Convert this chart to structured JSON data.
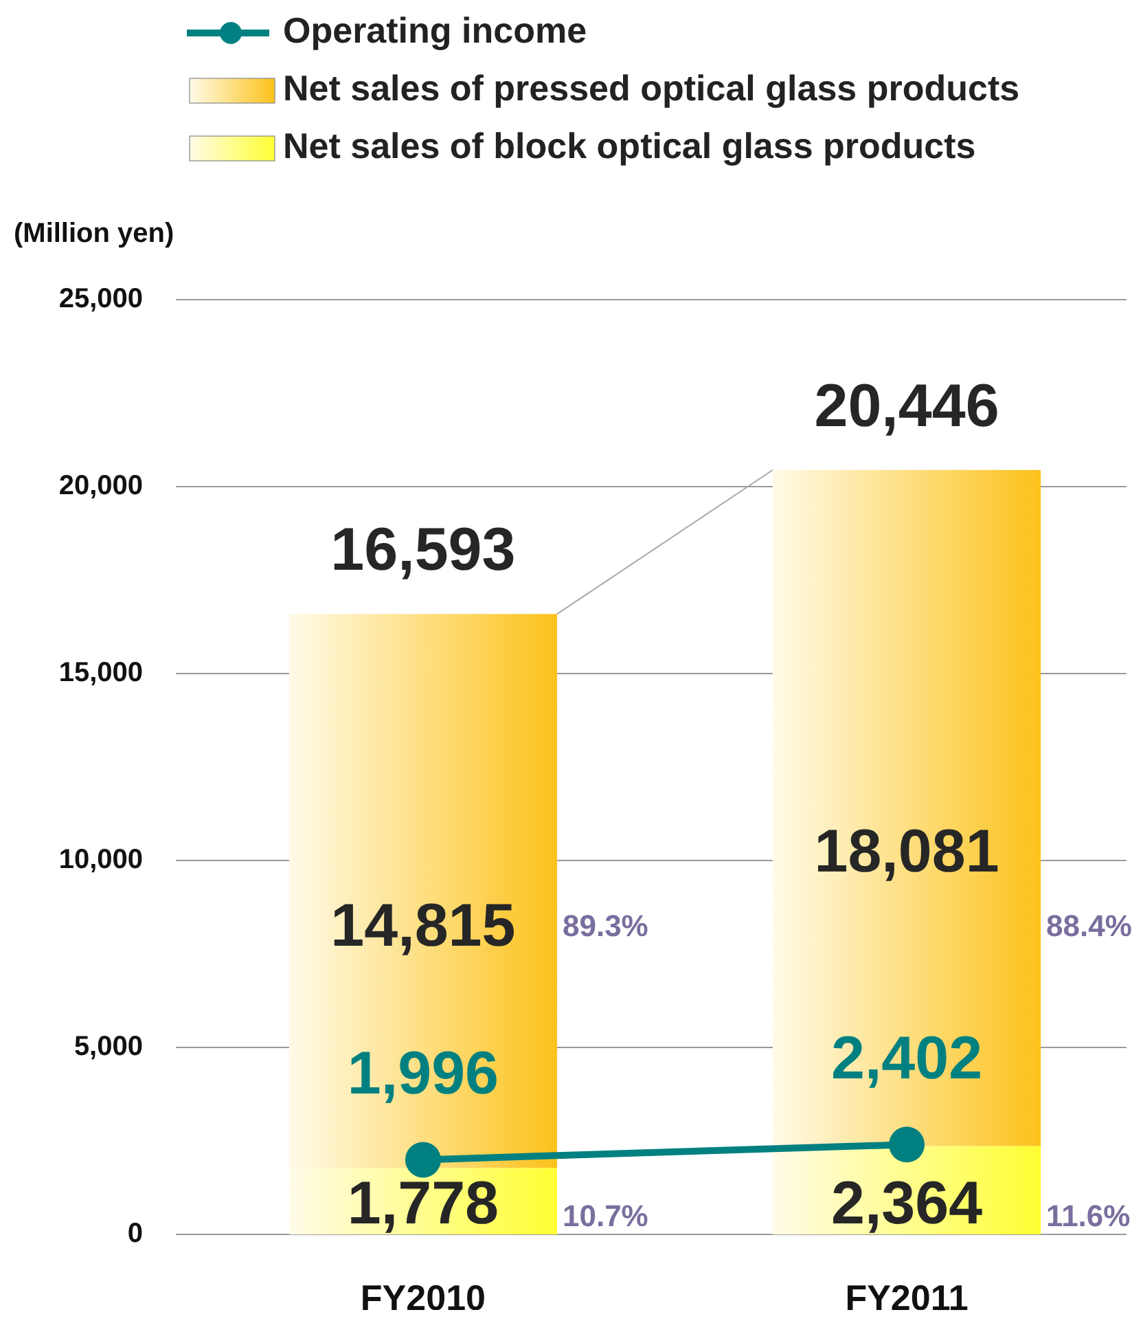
{
  "chart_data": {
    "type": "bar",
    "stacked": true,
    "ylabel": "(Million yen)",
    "categories": [
      "FY2010",
      "FY2011"
    ],
    "series": [
      {
        "name": "Net sales of block optical glass products",
        "color": "#ffff33",
        "values": [
          1778,
          2364
        ],
        "value_labels": [
          "1,778",
          "2,364"
        ]
      },
      {
        "name": "Net sales of pressed optical glass products",
        "color": "#fcc21b",
        "values": [
          14815,
          18081
        ],
        "value_labels": [
          "14,815",
          "18,081"
        ]
      },
      {
        "name": "Operating income",
        "type": "line",
        "color": "#008080",
        "marker": "circle",
        "values": [
          1996,
          2402
        ],
        "value_labels": [
          "1,996",
          "2,402"
        ]
      }
    ],
    "totals": [
      "16,593",
      "20,446"
    ],
    "annotations": [
      "89.3%",
      "10.7%",
      "88.4%",
      "11.6%"
    ],
    "ylim": [
      0,
      25000
    ],
    "yticks": [
      {
        "value": 0,
        "label": "0"
      },
      {
        "value": 5000,
        "label": "5,000"
      },
      {
        "value": 10000,
        "label": "10,000"
      },
      {
        "value": 15000,
        "label": "15,000"
      },
      {
        "value": 20000,
        "label": "20,000"
      },
      {
        "value": 25000,
        "label": "25,000"
      }
    ],
    "grid": "y",
    "legend": "top left"
  }
}
